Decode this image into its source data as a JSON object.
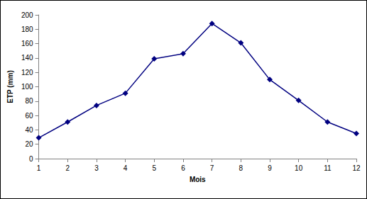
{
  "chart_data": {
    "type": "line",
    "x_label": "Mois",
    "y_label": "ETP (mm)",
    "x": [
      1,
      2,
      3,
      4,
      5,
      6,
      7,
      8,
      9,
      10,
      11,
      12
    ],
    "values": [
      29,
      51,
      74,
      91,
      139,
      146,
      188,
      161,
      110,
      81,
      51,
      35
    ],
    "color": "#000080",
    "marker": "diamond",
    "line_style": "solid",
    "xlim": [
      1,
      12
    ],
    "xticks": [
      1,
      2,
      3,
      4,
      5,
      6,
      7,
      8,
      9,
      10,
      11,
      12
    ],
    "ylim": [
      0,
      200
    ],
    "yticks": [
      0,
      20,
      40,
      60,
      80,
      100,
      120,
      140,
      160,
      180,
      200
    ],
    "grid": false
  }
}
